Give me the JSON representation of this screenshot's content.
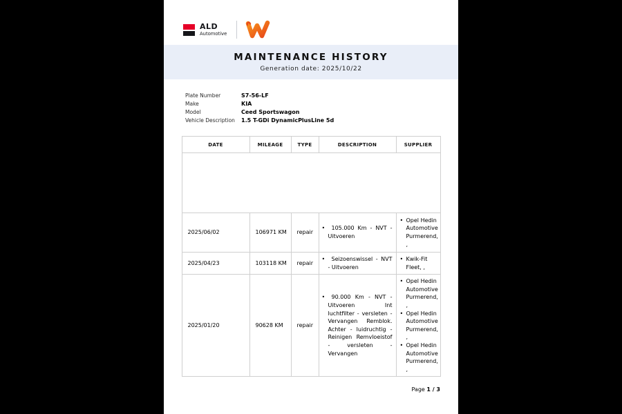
{
  "brand": {
    "ald_logo": {
      "name": "ALD",
      "subtitle": "Automotive",
      "red": "#e60028",
      "black": "#15161a"
    },
    "partner_logo": {
      "name": "wittebrug-w-logo",
      "orange": "#f7941d",
      "deep_orange": "#e8491b"
    }
  },
  "header": {
    "title": "MAINTENANCE HISTORY",
    "subtitle": "Generation date: 2025/10/22",
    "band_color": "#e9eef8"
  },
  "vehicle": {
    "fields": [
      {
        "label": "Plate Number",
        "value": "S7-56-LF"
      },
      {
        "label": "Make",
        "value": "KIA"
      },
      {
        "label": "Model",
        "value": "Ceed Sportswagon"
      },
      {
        "label": "Vehicle Description",
        "value": "1.5 T-GDi DynamicPlusLine 5d"
      }
    ]
  },
  "maintenance_table": {
    "columns": [
      "DATE",
      "MILEAGE",
      "TYPE",
      "DESCRIPTION",
      "SUPPLIER"
    ],
    "rows": [
      {
        "date": "",
        "mileage": "",
        "type": "",
        "descriptions": [],
        "suppliers": []
      },
      {
        "date": "2025/06/02",
        "mileage": "106971 KM",
        "type": "repair",
        "descriptions": [
          "105.000 Km - NVT - Uitvoeren"
        ],
        "suppliers": [
          "Opel Hedin Automotive Purmerend, ,"
        ]
      },
      {
        "date": "2025/04/23",
        "mileage": "103118 KM",
        "type": "repair",
        "descriptions": [
          "Seizoenswissel - NVT - Uitvoeren"
        ],
        "suppliers": [
          "Kwik-Fit Fleet, ,"
        ]
      },
      {
        "date": "2025/01/20",
        "mileage": "90628 KM",
        "type": "repair",
        "descriptions": [
          "90.000 Km - NVT - Uitvoeren Int luchtfilter - versleten - Vervangen Remblok. Achter - luidruchtig - Reinigen Remvloeistof - versleten - Vervangen"
        ],
        "suppliers": [
          "Opel Hedin Automotive Purmerend, ,",
          "Opel Hedin Automotive Purmerend, ,",
          "Opel Hedin Automotive Purmerend, ,"
        ]
      }
    ]
  },
  "footer": {
    "page_label": "Page",
    "page_number": "1 / 3"
  }
}
